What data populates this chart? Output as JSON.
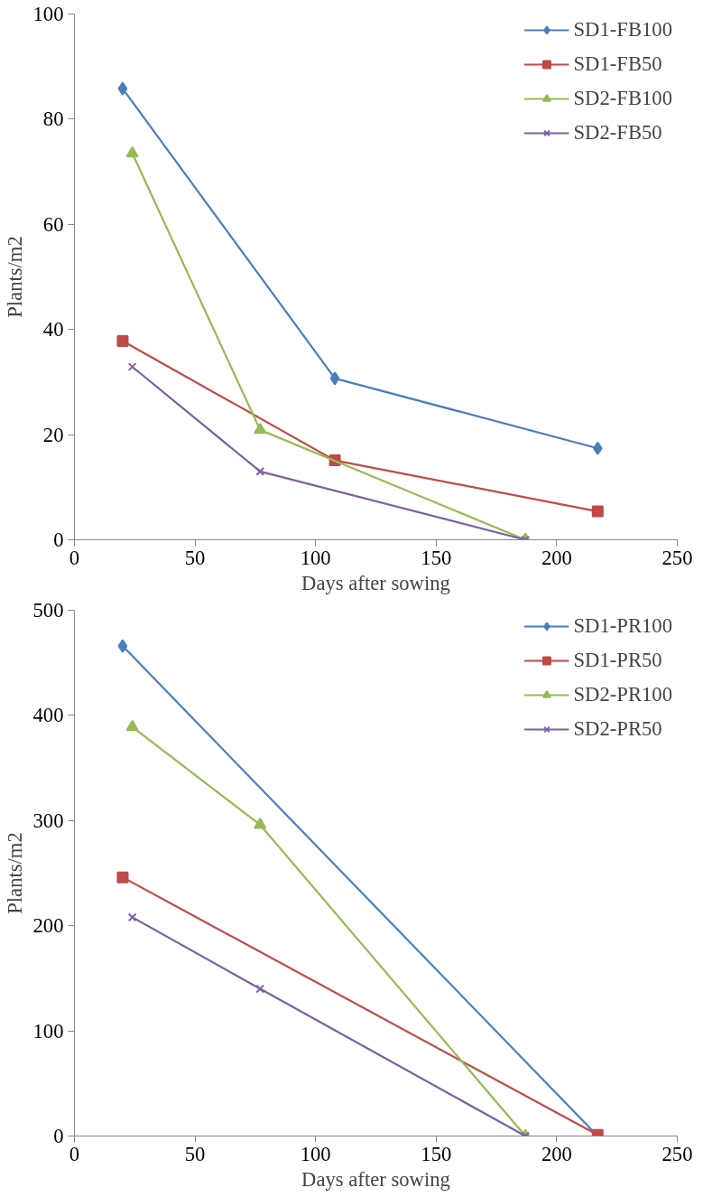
{
  "chart_data": [
    {
      "type": "line",
      "xlabel": "Days after sowing",
      "ylabel": "Plants/m2",
      "xlim": [
        0,
        250
      ],
      "ylim": [
        0,
        100
      ],
      "xticks": [
        0,
        50,
        100,
        150,
        200,
        250
      ],
      "yticks": [
        0,
        20,
        40,
        60,
        80,
        100
      ],
      "grid": false,
      "legend": "top right",
      "series": [
        {
          "name": "SD1-FB100",
          "color": "#4a7ebb",
          "marker": "diamond",
          "x": [
            20,
            108,
            217
          ],
          "values": [
            85.8,
            30.7,
            17.4
          ]
        },
        {
          "name": "SD1-FB50",
          "color": "#be4b48",
          "marker": "square",
          "x": [
            20,
            108,
            217
          ],
          "values": [
            37.8,
            15.1,
            5.4
          ]
        },
        {
          "name": "SD2-FB100",
          "color": "#98b954",
          "marker": "triangle",
          "x": [
            24,
            77,
            187
          ],
          "values": [
            73.5,
            20.9,
            0
          ]
        },
        {
          "name": "SD2-FB50",
          "color": "#7d60a0",
          "marker": "cross",
          "x": [
            24,
            77,
            187
          ],
          "values": [
            32.9,
            13.0,
            0
          ]
        }
      ]
    },
    {
      "type": "line",
      "xlabel": "Days after sowing",
      "ylabel": "Plants/m2",
      "xlim": [
        0,
        250
      ],
      "ylim": [
        0,
        500
      ],
      "xticks": [
        0,
        50,
        100,
        150,
        200,
        250
      ],
      "yticks": [
        0,
        100,
        200,
        300,
        400,
        500
      ],
      "grid": false,
      "legend": "top right",
      "series": [
        {
          "name": "SD1-PR100",
          "color": "#4a7ebb",
          "marker": "diamond",
          "x": [
            20,
            217
          ],
          "values": [
            466,
            0
          ]
        },
        {
          "name": "SD1-PR50",
          "color": "#be4b48",
          "marker": "square",
          "x": [
            20,
            217
          ],
          "values": [
            246,
            1
          ]
        },
        {
          "name": "SD2-PR100",
          "color": "#98b954",
          "marker": "triangle",
          "x": [
            24,
            77,
            187
          ],
          "values": [
            389,
            296,
            0
          ]
        },
        {
          "name": "SD2-PR50",
          "color": "#7d60a0",
          "marker": "cross",
          "x": [
            24,
            77,
            187
          ],
          "values": [
            208,
            140,
            0
          ]
        }
      ]
    }
  ]
}
